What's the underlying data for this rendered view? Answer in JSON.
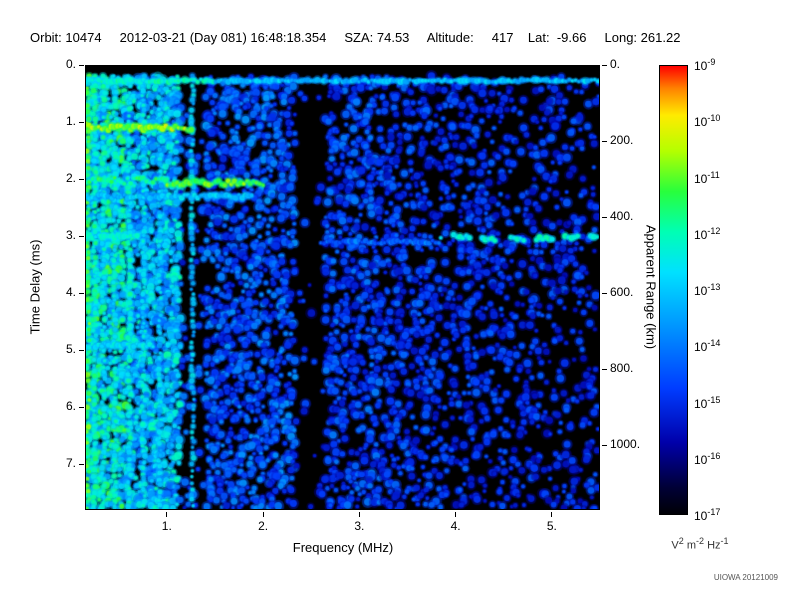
{
  "header": {
    "text": "Orbit: 10474     2012-03-21 (Day 081) 16:48:18.354     SZA: 74.53     Altitude:     417    Lat:  -9.66     Long: 261.22"
  },
  "footer": {
    "credit": "UIOWA 20121009"
  },
  "chart_data": {
    "type": "heatmap",
    "title": "",
    "xlabel": "Frequency (MHz)",
    "ylabel_left": "Time Delay (ms)",
    "ylabel_right": "Apparent Range (km)",
    "x_range": [
      0.15,
      5.5
    ],
    "y_range": [
      0,
      7.8
    ],
    "y2_range": [
      0,
      1170
    ],
    "x_ticks": [
      1,
      2,
      3,
      4,
      5
    ],
    "x_tick_labels": [
      "1.",
      "2.",
      "3.",
      "4.",
      "5."
    ],
    "y_ticks": [
      0,
      1,
      2,
      3,
      4,
      5,
      6,
      7
    ],
    "y_tick_labels": [
      "0.",
      "1.",
      "2.",
      "3.",
      "4.",
      "5.",
      "6.",
      "7."
    ],
    "y2_ticks": [
      0,
      200,
      400,
      600,
      800,
      1000
    ],
    "y2_tick_labels": [
      "0.",
      "200.",
      "400.",
      "600.",
      "800.",
      "1000."
    ],
    "colorbar": {
      "scale": "log",
      "min_exponent": -17,
      "max_exponent": -9,
      "tick_labels_base": "10",
      "tick_exponents": [
        "-9",
        "-10",
        "-11",
        "-12",
        "-13",
        "-14",
        "-15",
        "-16",
        "-17"
      ],
      "units_parts": [
        [
          "V",
          "2"
        ],
        [
          "m",
          "-2"
        ],
        [
          "Hz",
          "-1"
        ]
      ]
    },
    "colormap": [
      [
        0.0,
        0,
        0,
        6
      ],
      [
        0.06,
        0,
        0,
        55
      ],
      [
        0.16,
        0,
        0,
        170
      ],
      [
        0.28,
        0,
        60,
        255
      ],
      [
        0.42,
        0,
        150,
        255
      ],
      [
        0.54,
        0,
        225,
        255
      ],
      [
        0.63,
        0,
        255,
        180
      ],
      [
        0.72,
        40,
        255,
        60
      ],
      [
        0.81,
        180,
        255,
        0
      ],
      [
        0.89,
        255,
        235,
        0
      ],
      [
        0.95,
        255,
        130,
        0
      ],
      [
        1.0,
        255,
        0,
        0
      ]
    ],
    "seed": 1337,
    "top_black_band_ms": 0.18,
    "noise_regions": [
      {
        "f0": 0.15,
        "f1": 0.55,
        "density": 0.97,
        "v": 0.58,
        "var": 0.17
      },
      {
        "f0": 0.55,
        "f1": 1.15,
        "density": 0.92,
        "v": 0.5,
        "var": 0.15
      },
      {
        "f0": 1.15,
        "f1": 1.42,
        "density": 0.12,
        "v": 0.3,
        "var": 0.1
      },
      {
        "f0": 1.42,
        "f1": 2.35,
        "density": 0.58,
        "v": 0.33,
        "var": 0.1
      },
      {
        "f0": 2.35,
        "f1": 2.62,
        "density": 0.06,
        "v": 0.26,
        "var": 0.07
      },
      {
        "f0": 2.62,
        "f1": 3.2,
        "density": 0.5,
        "v": 0.3,
        "var": 0.09
      },
      {
        "f0": 3.2,
        "f1": 3.75,
        "density": 0.42,
        "v": 0.28,
        "var": 0.08
      },
      {
        "f0": 3.75,
        "f1": 4.5,
        "density": 0.34,
        "v": 0.27,
        "var": 0.08
      },
      {
        "f0": 4.5,
        "f1": 5.5,
        "density": 0.28,
        "v": 0.26,
        "var": 0.08
      }
    ],
    "vertical_streaks": [
      {
        "f": 0.17,
        "v": 0.72
      },
      {
        "f": 0.24,
        "v": 0.62
      },
      {
        "f": 0.33,
        "v": 0.6
      },
      {
        "f": 0.45,
        "v": 0.58
      },
      {
        "f": 0.6,
        "v": 0.6
      },
      {
        "f": 0.75,
        "v": 0.55
      },
      {
        "f": 0.92,
        "v": 0.52
      },
      {
        "f": 1.26,
        "v": 0.5
      }
    ],
    "horizontal_features": [
      {
        "t": 0.26,
        "f0": 0.15,
        "f1": 1.5,
        "v": 0.62,
        "h": 3
      },
      {
        "t": 0.26,
        "f0": 1.5,
        "f1": 5.5,
        "v": 0.5,
        "h": 2.5
      },
      {
        "t": 1.08,
        "f0": 0.15,
        "f1": 1.28,
        "v": 0.8,
        "h": 6
      },
      {
        "t": 2.02,
        "f0": 0.15,
        "f1": 1.0,
        "v": 0.68,
        "h": 6
      },
      {
        "t": 2.06,
        "f0": 1.0,
        "f1": 2.0,
        "v": 0.75,
        "h": 5
      },
      {
        "t": 2.3,
        "f0": 0.15,
        "f1": 1.9,
        "v": 0.52,
        "h": 4
      },
      {
        "t": 3.02,
        "f0": 3.85,
        "f1": 5.5,
        "v": 0.6,
        "h": 4,
        "dash_k": 22,
        "wave": 2
      },
      {
        "t": 3.1,
        "f0": 2.6,
        "f1": 3.85,
        "v": 0.36,
        "h": 3
      },
      {
        "t": 3.0,
        "f0": 0.15,
        "f1": 0.7,
        "v": 0.6,
        "h": 4
      },
      {
        "t": 4.92,
        "f0": 0.15,
        "f1": 0.85,
        "v": 0.56,
        "h": 4
      }
    ]
  }
}
